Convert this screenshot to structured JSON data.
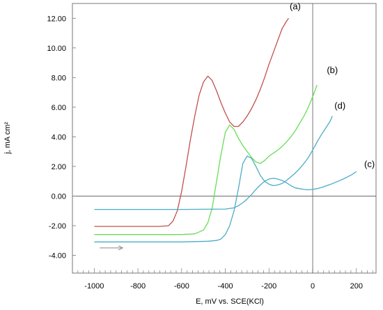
{
  "chart_data": {
    "type": "line",
    "xlabel": "E, mV vs. SCE(KCl)",
    "ylabel": "j, mA cm²",
    "xlim": [
      -1100,
      290
    ],
    "ylim": [
      -5.2,
      13.0
    ],
    "x_ticks": [
      -1000,
      -800,
      -600,
      -400,
      -200,
      0,
      200
    ],
    "x_tick_labels": [
      "-1000",
      "-800",
      "-600",
      "-400",
      "-200",
      "0",
      "200"
    ],
    "y_ticks": [
      -4,
      -2,
      0,
      2,
      4,
      6,
      8,
      10,
      12
    ],
    "y_tick_labels": [
      "-4.00",
      "-2.00",
      "0.00",
      "2.00",
      "4.00",
      "6.00",
      "8.00",
      "10.00",
      "12.00"
    ],
    "reference_lines": {
      "x": 0,
      "y": 0
    },
    "grid": false,
    "scan_direction": "forward (increasing E)",
    "series": [
      {
        "name": "(a)",
        "color": "#c0504d",
        "x": [
          -1000,
          -800,
          -700,
          -660,
          -640,
          -620,
          -600,
          -580,
          -560,
          -540,
          -520,
          -500,
          -480,
          -460,
          -440,
          -420,
          -400,
          -380,
          -360,
          -340,
          -320,
          -300,
          -280,
          -260,
          -240,
          -220,
          -200,
          -180,
          -160,
          -140,
          -120,
          -110
        ],
        "y": [
          -2.05,
          -2.05,
          -2.05,
          -2.0,
          -1.7,
          -1.0,
          0.3,
          2.0,
          3.8,
          5.4,
          6.8,
          7.7,
          8.1,
          7.8,
          7.1,
          6.3,
          5.6,
          5.0,
          4.7,
          4.7,
          5.0,
          5.4,
          5.9,
          6.5,
          7.2,
          8.0,
          8.9,
          9.7,
          10.5,
          11.3,
          11.8,
          12.0
        ]
      },
      {
        "name": "(b)",
        "color": "#66dd55",
        "x": [
          -1000,
          -800,
          -600,
          -540,
          -500,
          -480,
          -460,
          -440,
          -420,
          -400,
          -380,
          -360,
          -340,
          -320,
          -300,
          -280,
          -260,
          -240,
          -220,
          -200,
          -180,
          -160,
          -140,
          -120,
          -100,
          -80,
          -60,
          -40,
          -20,
          0,
          20
        ],
        "y": [
          -2.6,
          -2.6,
          -2.6,
          -2.55,
          -2.3,
          -1.8,
          -0.8,
          1.0,
          2.8,
          4.3,
          4.8,
          4.5,
          3.9,
          3.4,
          3.0,
          2.6,
          2.3,
          2.2,
          2.4,
          2.7,
          2.9,
          3.1,
          3.35,
          3.65,
          4.0,
          4.4,
          4.9,
          5.4,
          6.0,
          6.7,
          7.5
        ]
      },
      {
        "name": "(c)",
        "color": "#4bacc6",
        "x": [
          -1000,
          -800,
          -600,
          -400,
          -360,
          -340,
          -320,
          -300,
          -280,
          -260,
          -240,
          -220,
          -200,
          -180,
          -160,
          -140,
          -120,
          -100,
          -80,
          -60,
          -40,
          -20,
          0,
          20,
          40,
          60,
          80,
          100,
          120,
          140,
          160,
          180,
          200
        ],
        "y": [
          -0.9,
          -0.9,
          -0.9,
          -0.88,
          -0.8,
          -0.65,
          -0.45,
          -0.2,
          0.1,
          0.45,
          0.75,
          1.0,
          1.15,
          1.2,
          1.15,
          1.05,
          0.9,
          0.7,
          0.55,
          0.5,
          0.45,
          0.42,
          0.45,
          0.5,
          0.58,
          0.68,
          0.78,
          0.9,
          1.02,
          1.15,
          1.3,
          1.45,
          1.65
        ]
      },
      {
        "name": "(d)",
        "color": "#4bacc6",
        "x": [
          -1000,
          -800,
          -600,
          -480,
          -440,
          -420,
          -400,
          -380,
          -360,
          -340,
          -320,
          -300,
          -280,
          -260,
          -240,
          -220,
          -200,
          -180,
          -160,
          -140,
          -120,
          -100,
          -80,
          -60,
          -40,
          -20,
          0,
          20,
          40,
          60,
          80,
          90
        ],
        "y": [
          -3.1,
          -3.1,
          -3.1,
          -3.05,
          -3.0,
          -2.9,
          -2.6,
          -2.0,
          -1.0,
          0.5,
          2.2,
          2.7,
          2.55,
          2.0,
          1.4,
          1.0,
          0.8,
          0.7,
          0.75,
          0.85,
          1.05,
          1.3,
          1.55,
          1.85,
          2.2,
          2.6,
          3.1,
          3.65,
          4.15,
          4.6,
          5.05,
          5.4
        ]
      }
    ],
    "curve_labels": [
      {
        "text": "(a)",
        "x": -80,
        "y": 12.6
      },
      {
        "text": "(b)",
        "x": 90,
        "y": 8.3
      },
      {
        "text": "(d)",
        "x": 125,
        "y": 5.9
      },
      {
        "text": "(c)",
        "x": 260,
        "y": 1.95
      }
    ],
    "arrow": {
      "x_start": -975,
      "x_end": -870,
      "y": -3.5,
      "color": "#888888"
    }
  }
}
